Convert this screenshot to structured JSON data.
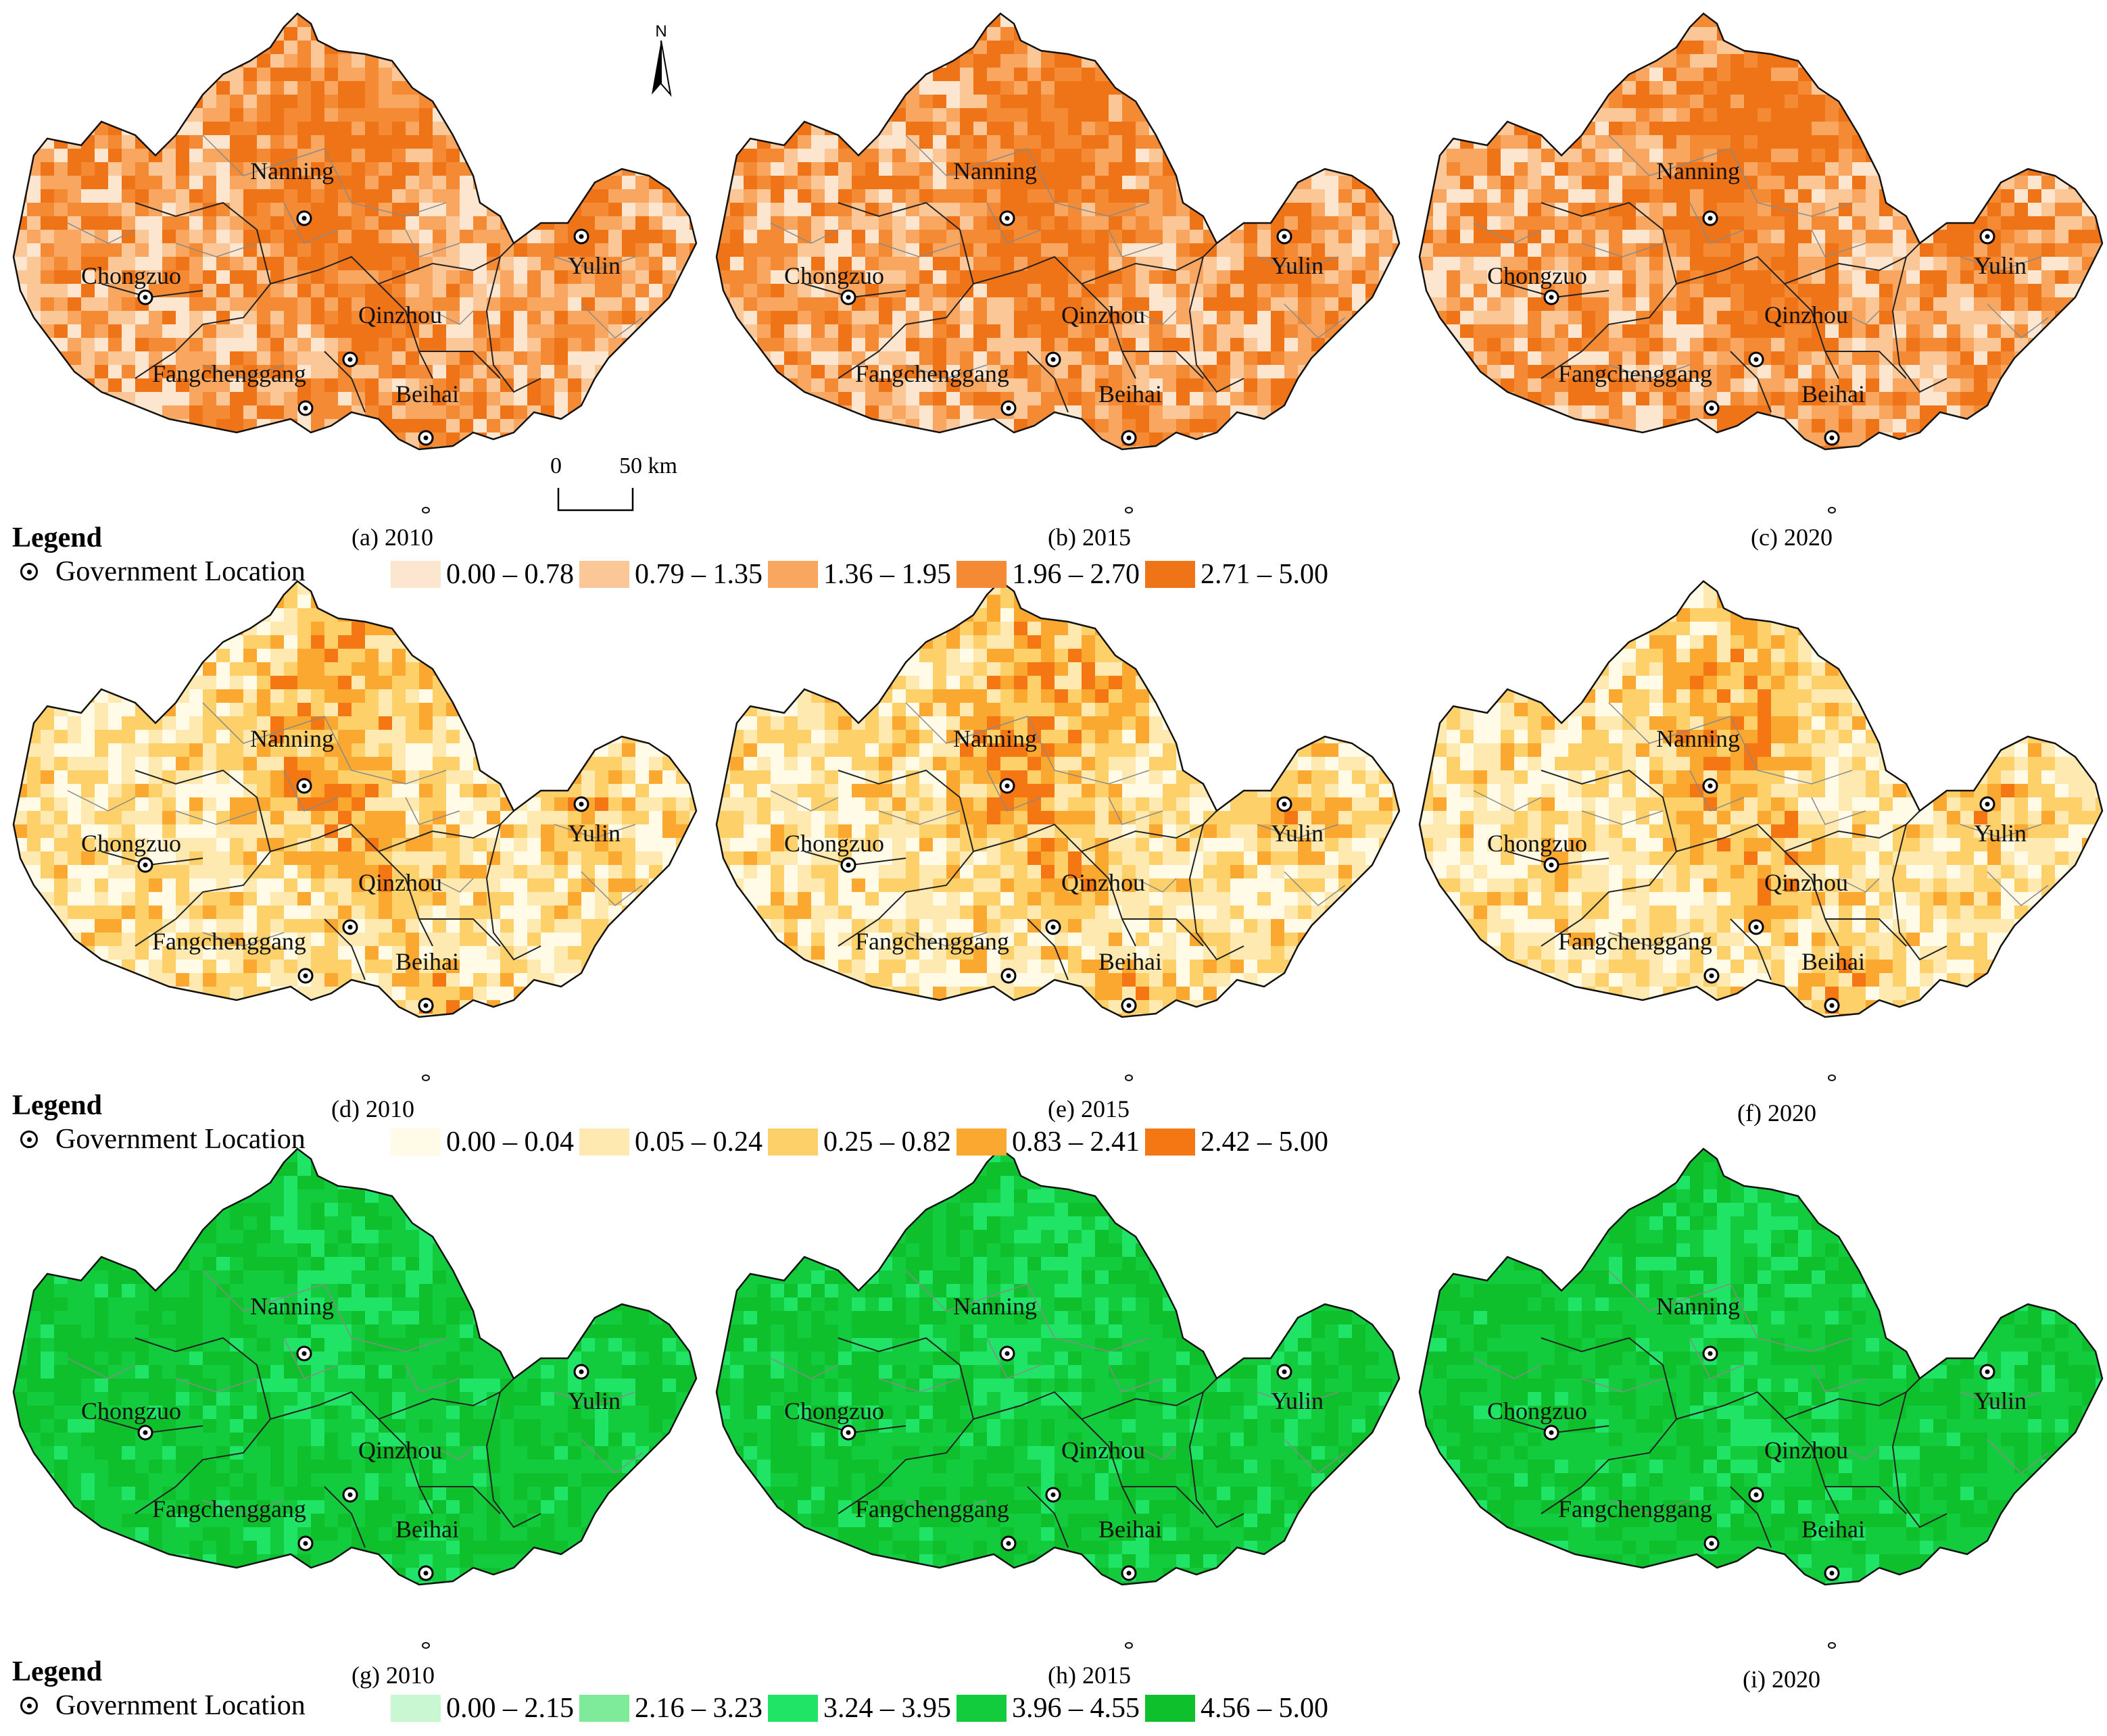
{
  "north_label": "N",
  "scale_bar": {
    "start": "0",
    "end": "50 km"
  },
  "cities": [
    {
      "name": "Nanning",
      "gov": true
    },
    {
      "name": "Chongzuo",
      "gov": true
    },
    {
      "name": "Yulin",
      "gov": true
    },
    {
      "name": "Qinzhou",
      "gov": true
    },
    {
      "name": "Fangchenggang",
      "gov": true
    },
    {
      "name": "Beihai",
      "gov": true
    }
  ],
  "rows": [
    {
      "legend_title": "Legend",
      "gov_label": "Government Location",
      "classes": [
        {
          "label": "0.00 – 0.78",
          "color": "#fde6cf"
        },
        {
          "label": "0.79 – 1.35",
          "color": "#fbc796"
        },
        {
          "label": "1.36 – 1.95",
          "color": "#f9a760"
        },
        {
          "label": "1.96 – 2.70",
          "color": "#f58a34"
        },
        {
          "label": "2.71 – 5.00",
          "color": "#ef7418"
        }
      ],
      "panels": [
        {
          "caption": "(a) 2010"
        },
        {
          "caption": "(b) 2015"
        },
        {
          "caption": "(c) 2020"
        }
      ]
    },
    {
      "legend_title": "Legend",
      "gov_label": "Government Location",
      "classes": [
        {
          "label": "0.00 – 0.04",
          "color": "#fffbe6"
        },
        {
          "label": "0.05 – 0.24",
          "color": "#fee9b1"
        },
        {
          "label": "0.25 – 0.82",
          "color": "#fdd06a"
        },
        {
          "label": "0.83 – 2.41",
          "color": "#fba830"
        },
        {
          "label": "2.42 – 5.00",
          "color": "#f47713"
        }
      ],
      "panels": [
        {
          "caption": "(d) 2010"
        },
        {
          "caption": "(e) 2015"
        },
        {
          "caption": "(f) 2020"
        }
      ]
    },
    {
      "legend_title": "Legend",
      "gov_label": "Government Location",
      "classes": [
        {
          "label": "0.00 – 2.15",
          "color": "#c8f7d2"
        },
        {
          "label": "2.16 – 3.23",
          "color": "#7eeb9a"
        },
        {
          "label": "3.24 – 3.95",
          "color": "#1fe465"
        },
        {
          "label": "3.96 – 4.55",
          "color": "#12cc3e"
        },
        {
          "label": "4.56 – 5.00",
          "color": "#0ec12c"
        }
      ],
      "panels": [
        {
          "caption": "(g) 2010"
        },
        {
          "caption": "(h) 2015"
        },
        {
          "caption": "(i) 2020"
        }
      ]
    }
  ]
}
